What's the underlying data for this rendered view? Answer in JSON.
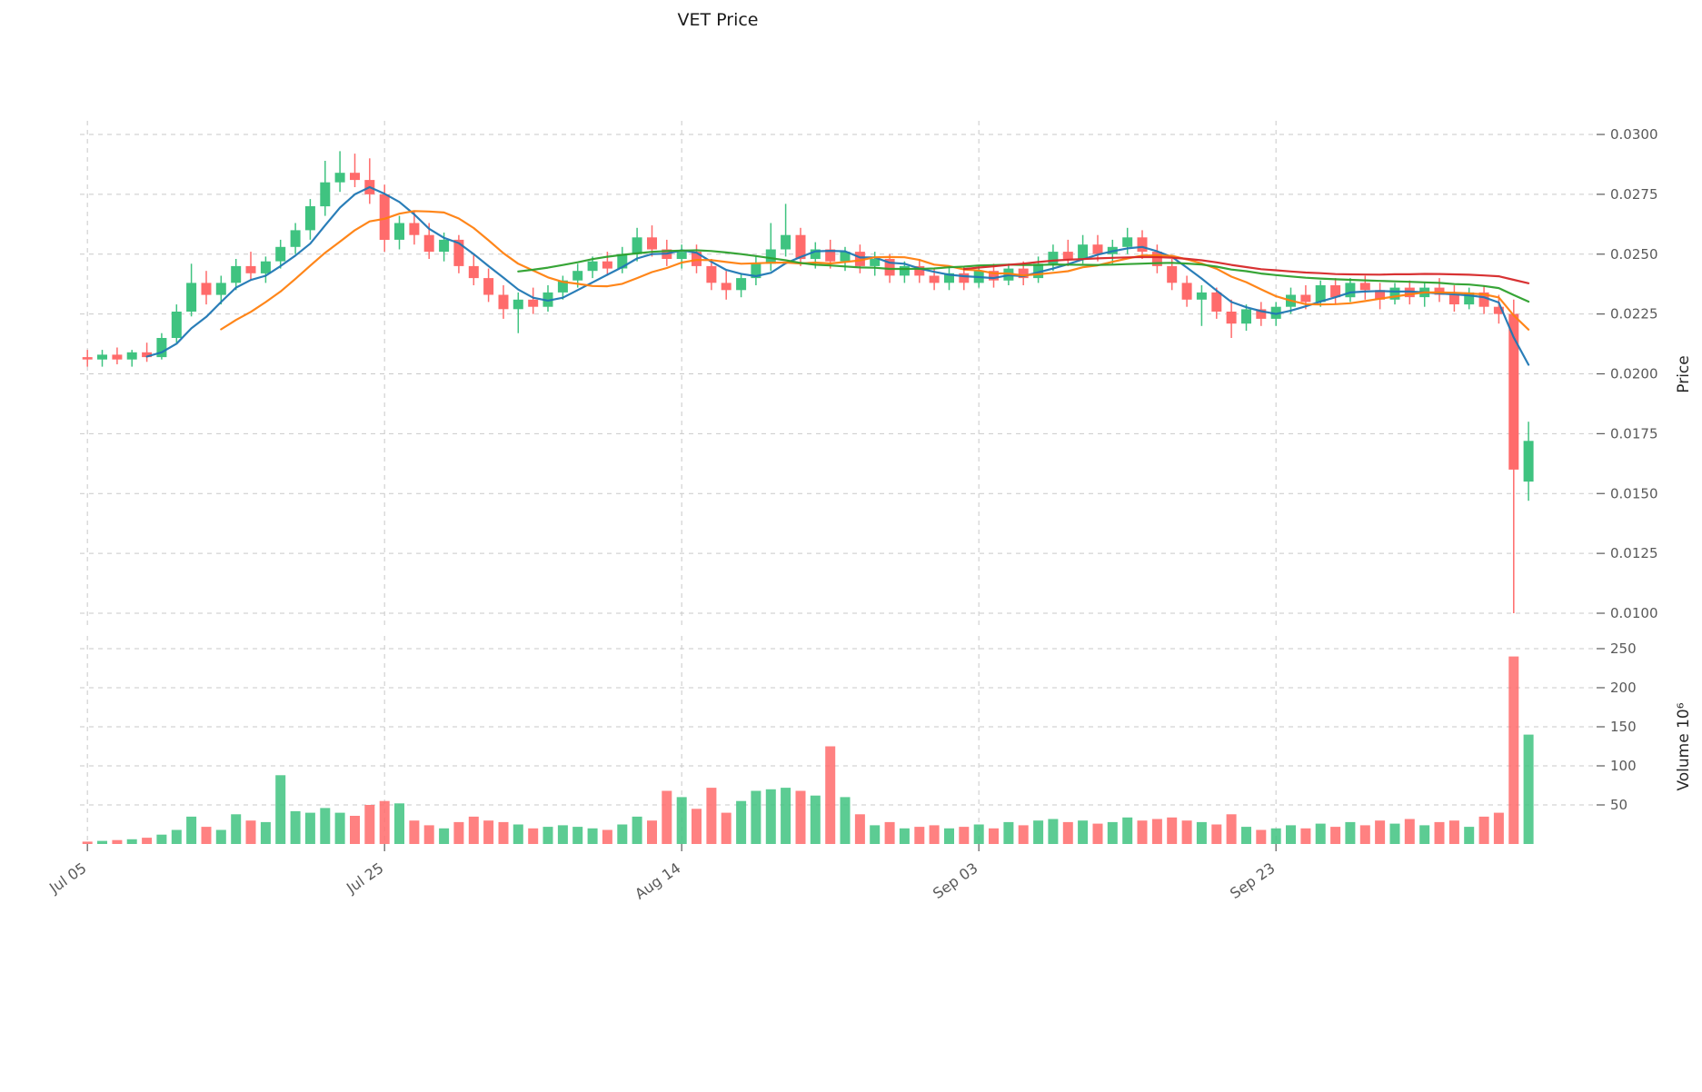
{
  "chart_data": {
    "type": "candlestick",
    "title": "VET Price",
    "panels": [
      "price",
      "volume"
    ],
    "price_axis": {
      "label": "Price",
      "side": "right",
      "ticks": [
        0.01,
        0.0125,
        0.015,
        0.0175,
        0.02,
        0.0225,
        0.025,
        0.0275,
        0.03
      ],
      "tick_labels": [
        "0.0100",
        "0.0125",
        "0.0150",
        "0.0175",
        "0.0200",
        "0.0225",
        "0.0250",
        "0.0275",
        "0.0300"
      ]
    },
    "volume_axis": {
      "label": "Volume  10⁶",
      "side": "right",
      "unit": "10^6",
      "ticks": [
        50,
        100,
        150,
        200,
        250
      ]
    },
    "x_ticks": [
      {
        "label": "Jul 05",
        "index": 0
      },
      {
        "label": "Jul 25",
        "index": 20
      },
      {
        "label": "Aug 14",
        "index": 40
      },
      {
        "label": "Sep 03",
        "index": 60
      },
      {
        "label": "Sep 23",
        "index": 80
      }
    ],
    "colors": {
      "up": "#3fc380",
      "down": "#ff6b6b",
      "ma_fast": "#1f77b4",
      "ma_mid": "#ff7f0e",
      "ma_slow": "#2ca02c",
      "ma_slowest": "#d62728",
      "grid": "#c9c9c9"
    },
    "moving_averages": [
      {
        "name": "MA5",
        "window": 5,
        "color": "#1f77b4"
      },
      {
        "name": "MA10",
        "window": 10,
        "color": "#ff7f0e"
      },
      {
        "name": "MA30",
        "window": 30,
        "color": "#2ca02c"
      },
      {
        "name": "MA60",
        "window": 60,
        "color": "#d62728"
      }
    ],
    "grid": true,
    "candles": {
      "open": [
        0.0207,
        0.0206,
        0.0208,
        0.0206,
        0.0209,
        0.0207,
        0.0215,
        0.0226,
        0.0238,
        0.0233,
        0.0238,
        0.0245,
        0.0242,
        0.0247,
        0.0253,
        0.026,
        0.027,
        0.028,
        0.0284,
        0.0281,
        0.0275,
        0.0256,
        0.0263,
        0.0258,
        0.0251,
        0.0256,
        0.0245,
        0.024,
        0.0233,
        0.0227,
        0.0231,
        0.0228,
        0.0234,
        0.0239,
        0.0243,
        0.0247,
        0.0244,
        0.025,
        0.0257,
        0.0252,
        0.0248,
        0.0251,
        0.0245,
        0.0238,
        0.0235,
        0.024,
        0.0246,
        0.0252,
        0.0258,
        0.0248,
        0.0252,
        0.0247,
        0.0251,
        0.0245,
        0.0248,
        0.0241,
        0.0245,
        0.0241,
        0.0238,
        0.0242,
        0.0238,
        0.0243,
        0.0239,
        0.0244,
        0.024,
        0.0246,
        0.0251,
        0.0248,
        0.0254,
        0.025,
        0.0253,
        0.0257,
        0.0251,
        0.0245,
        0.0238,
        0.0231,
        0.0234,
        0.0226,
        0.0221,
        0.0227,
        0.0223,
        0.0228,
        0.0233,
        0.023,
        0.0237,
        0.0232,
        0.0238,
        0.0235,
        0.0231,
        0.0236,
        0.0232,
        0.0236,
        0.0233,
        0.0229,
        0.0234,
        0.0228,
        0.0225,
        0.0155
      ],
      "high": [
        0.021,
        0.021,
        0.0211,
        0.021,
        0.0213,
        0.0217,
        0.0229,
        0.0246,
        0.0243,
        0.0241,
        0.0248,
        0.0251,
        0.0249,
        0.0256,
        0.0263,
        0.0273,
        0.0289,
        0.0293,
        0.0292,
        0.029,
        0.0279,
        0.0266,
        0.0268,
        0.0263,
        0.0259,
        0.0258,
        0.025,
        0.0244,
        0.0237,
        0.0234,
        0.0236,
        0.0237,
        0.0241,
        0.0246,
        0.0249,
        0.0251,
        0.0253,
        0.0261,
        0.0262,
        0.0256,
        0.0254,
        0.0254,
        0.0248,
        0.0243,
        0.0242,
        0.0249,
        0.0263,
        0.0271,
        0.0261,
        0.0255,
        0.0256,
        0.0253,
        0.0254,
        0.0251,
        0.025,
        0.0247,
        0.0248,
        0.0244,
        0.0245,
        0.0245,
        0.0245,
        0.0246,
        0.0246,
        0.0247,
        0.0249,
        0.0254,
        0.0256,
        0.0258,
        0.0258,
        0.0256,
        0.0261,
        0.026,
        0.0254,
        0.0248,
        0.0241,
        0.0237,
        0.0236,
        0.0231,
        0.0229,
        0.023,
        0.023,
        0.0236,
        0.0237,
        0.0239,
        0.024,
        0.024,
        0.0241,
        0.0238,
        0.0238,
        0.0239,
        0.0238,
        0.024,
        0.0237,
        0.0236,
        0.0237,
        0.0233,
        0.0231,
        0.018
      ],
      "low": [
        0.0203,
        0.0203,
        0.0204,
        0.0203,
        0.0205,
        0.0206,
        0.0213,
        0.0224,
        0.0229,
        0.0229,
        0.0235,
        0.0239,
        0.0238,
        0.0244,
        0.025,
        0.0256,
        0.0266,
        0.0276,
        0.0278,
        0.0271,
        0.0251,
        0.0252,
        0.0254,
        0.0248,
        0.0247,
        0.0242,
        0.0237,
        0.023,
        0.0223,
        0.0217,
        0.0225,
        0.0226,
        0.0231,
        0.0236,
        0.024,
        0.0241,
        0.0242,
        0.0247,
        0.0249,
        0.0245,
        0.0244,
        0.0242,
        0.0235,
        0.0231,
        0.0232,
        0.0237,
        0.0243,
        0.0249,
        0.0245,
        0.0244,
        0.0244,
        0.0243,
        0.0242,
        0.0241,
        0.0238,
        0.0238,
        0.0238,
        0.0235,
        0.0235,
        0.0235,
        0.0236,
        0.0236,
        0.0237,
        0.0237,
        0.0238,
        0.0243,
        0.0245,
        0.0246,
        0.0247,
        0.0246,
        0.025,
        0.0248,
        0.0242,
        0.0235,
        0.0228,
        0.022,
        0.0223,
        0.0215,
        0.0218,
        0.022,
        0.022,
        0.0225,
        0.0227,
        0.0228,
        0.0229,
        0.023,
        0.0231,
        0.0227,
        0.0229,
        0.0229,
        0.0228,
        0.023,
        0.0226,
        0.0227,
        0.0225,
        0.0221,
        0.01,
        0.0147
      ],
      "close": [
        0.0206,
        0.0208,
        0.0206,
        0.0209,
        0.0207,
        0.0215,
        0.0226,
        0.0238,
        0.0233,
        0.0238,
        0.0245,
        0.0242,
        0.0247,
        0.0253,
        0.026,
        0.027,
        0.028,
        0.0284,
        0.0281,
        0.0275,
        0.0256,
        0.0263,
        0.0258,
        0.0251,
        0.0256,
        0.0245,
        0.024,
        0.0233,
        0.0227,
        0.0231,
        0.0228,
        0.0234,
        0.0239,
        0.0243,
        0.0247,
        0.0244,
        0.025,
        0.0257,
        0.0252,
        0.0248,
        0.0251,
        0.0245,
        0.0238,
        0.0235,
        0.024,
        0.0246,
        0.0252,
        0.0258,
        0.0248,
        0.0252,
        0.0247,
        0.0251,
        0.0245,
        0.0248,
        0.0241,
        0.0245,
        0.0241,
        0.0238,
        0.0242,
        0.0238,
        0.0243,
        0.0239,
        0.0244,
        0.024,
        0.0246,
        0.0251,
        0.0248,
        0.0254,
        0.025,
        0.0253,
        0.0257,
        0.0251,
        0.0245,
        0.0238,
        0.0231,
        0.0234,
        0.0226,
        0.0221,
        0.0227,
        0.0223,
        0.0228,
        0.0233,
        0.023,
        0.0237,
        0.0232,
        0.0238,
        0.0235,
        0.0231,
        0.0236,
        0.0232,
        0.0236,
        0.0233,
        0.0229,
        0.0234,
        0.0228,
        0.0225,
        0.016,
        0.0172
      ],
      "volume": [
        3,
        4,
        5,
        6,
        8,
        12,
        18,
        35,
        22,
        18,
        38,
        30,
        28,
        88,
        42,
        40,
        46,
        40,
        36,
        50,
        55,
        52,
        30,
        24,
        20,
        28,
        35,
        30,
        28,
        25,
        20,
        22,
        24,
        22,
        20,
        18,
        25,
        35,
        30,
        68,
        60,
        45,
        72,
        40,
        55,
        68,
        70,
        72,
        68,
        62,
        125,
        60,
        38,
        24,
        28,
        20,
        22,
        24,
        20,
        22,
        25,
        20,
        28,
        24,
        30,
        32,
        28,
        30,
        26,
        28,
        34,
        30,
        32,
        34,
        30,
        28,
        25,
        38,
        22,
        18,
        20,
        24,
        20,
        26,
        22,
        28,
        24,
        30,
        26,
        32,
        24,
        28,
        30,
        22,
        35,
        40,
        240,
        140
      ]
    }
  }
}
